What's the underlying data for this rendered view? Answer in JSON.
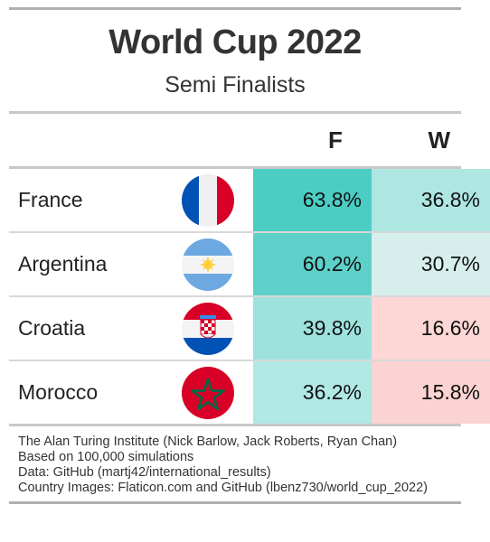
{
  "header": {
    "title": "World Cup 2022",
    "subtitle": "Semi Finalists"
  },
  "columns": {
    "f_label": "F",
    "w_label": "W"
  },
  "chart_data": {
    "type": "table",
    "title": "World Cup 2022",
    "subtitle": "Semi Finalists",
    "columns": [
      "F",
      "W"
    ],
    "rows": [
      {
        "team": "France",
        "flag": "france-flag-icon",
        "f": 63.8,
        "w": 36.8,
        "f_text": "63.8%",
        "w_text": "36.8%",
        "f_color": "#4ccdc4",
        "w_color": "#aee6e2"
      },
      {
        "team": "Argentina",
        "flag": "argentina-flag-icon",
        "f": 60.2,
        "w": 30.7,
        "f_text": "60.2%",
        "w_text": "30.7%",
        "f_color": "#5dd1c9",
        "w_color": "#d7efec"
      },
      {
        "team": "Croatia",
        "flag": "croatia-flag-icon",
        "f": 39.8,
        "w": 16.6,
        "f_text": "39.8%",
        "w_text": "16.6%",
        "f_color": "#9de2dd",
        "w_color": "#fdd6d6"
      },
      {
        "team": "Morocco",
        "flag": "morocco-flag-icon",
        "f": 36.2,
        "w": 15.8,
        "f_text": "36.2%",
        "w_text": "15.8%",
        "f_color": "#b0e8e4",
        "w_color": "#fcd3d3"
      }
    ]
  },
  "notes": [
    "The Alan Turing Institute (Nick Barlow, Jack Roberts, Ryan Chan)",
    "Based on 100,000 simulations",
    "Data: GitHub (martj42/international_results)",
    "Country Images: Flaticon.com and GitHub (lbenz730/world_cup_2022)"
  ]
}
